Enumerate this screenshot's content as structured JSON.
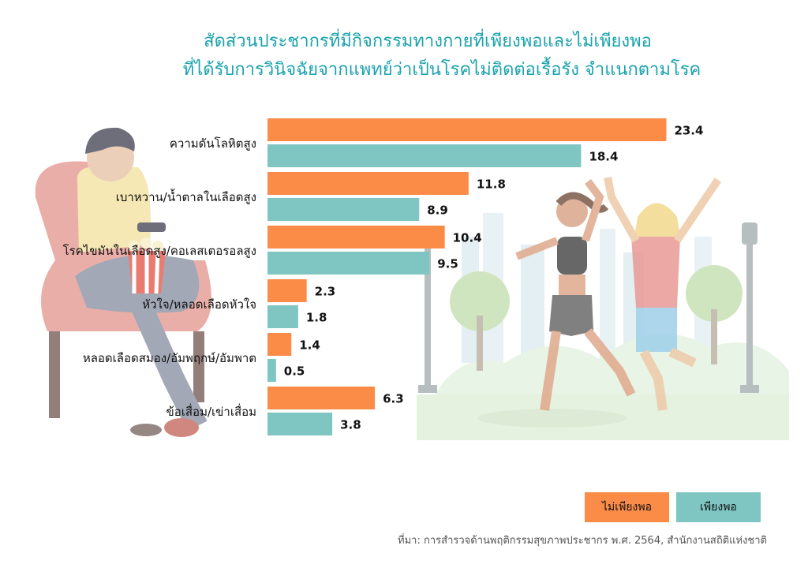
{
  "title_line1": "สัดส่วนประชากรที่มีกิจกรรมทางกายที่เพียงพอและไม่เพียงพอ",
  "title_line2": "ที่ได้รับการวินิจฉัยจากแพทย์ว่าเป็นโรคไม่ติดต่อเรื้อรัง จำแนกตามโรค",
  "colors": {
    "title": "#1aa3ad",
    "insufficient": "#fb8c48",
    "sufficient": "#7fc6c2"
  },
  "chart_data": {
    "type": "bar",
    "orientation": "horizontal",
    "categories": [
      "ความดันโลหิตสูง",
      "เบาหวาน/น้ำตาลในเลือดสูง",
      "โรคไขมันในเลือดสูง/คอเลสเตอรอลสูง",
      "หัวใจ/หลอดเลือดหัวใจ",
      "หลอดเลือดสมอง/อัมพฤกษ์/อัมพาต",
      "ข้อเสื่อม/เข่าเสื่อม"
    ],
    "series": [
      {
        "name": "ไม่เพียงพอ",
        "color": "#fb8c48",
        "values": [
          23.4,
          11.8,
          10.4,
          2.3,
          1.4,
          6.3
        ]
      },
      {
        "name": "เพียงพอ",
        "color": "#7fc6c2",
        "values": [
          18.4,
          8.9,
          9.5,
          1.8,
          0.5,
          3.8
        ]
      }
    ],
    "xlim": [
      0,
      25
    ],
    "legend": "bottom-right",
    "grid": false
  },
  "legend": {
    "insufficient": "ไม่เพียงพอ",
    "sufficient": "เพียงพอ"
  },
  "source": "ที่มา: การสำรวจด้านพฤติกรรมสุขภาพประชากร พ.ศ. 2564, สำนักงานสถิติแห่งชาติ"
}
